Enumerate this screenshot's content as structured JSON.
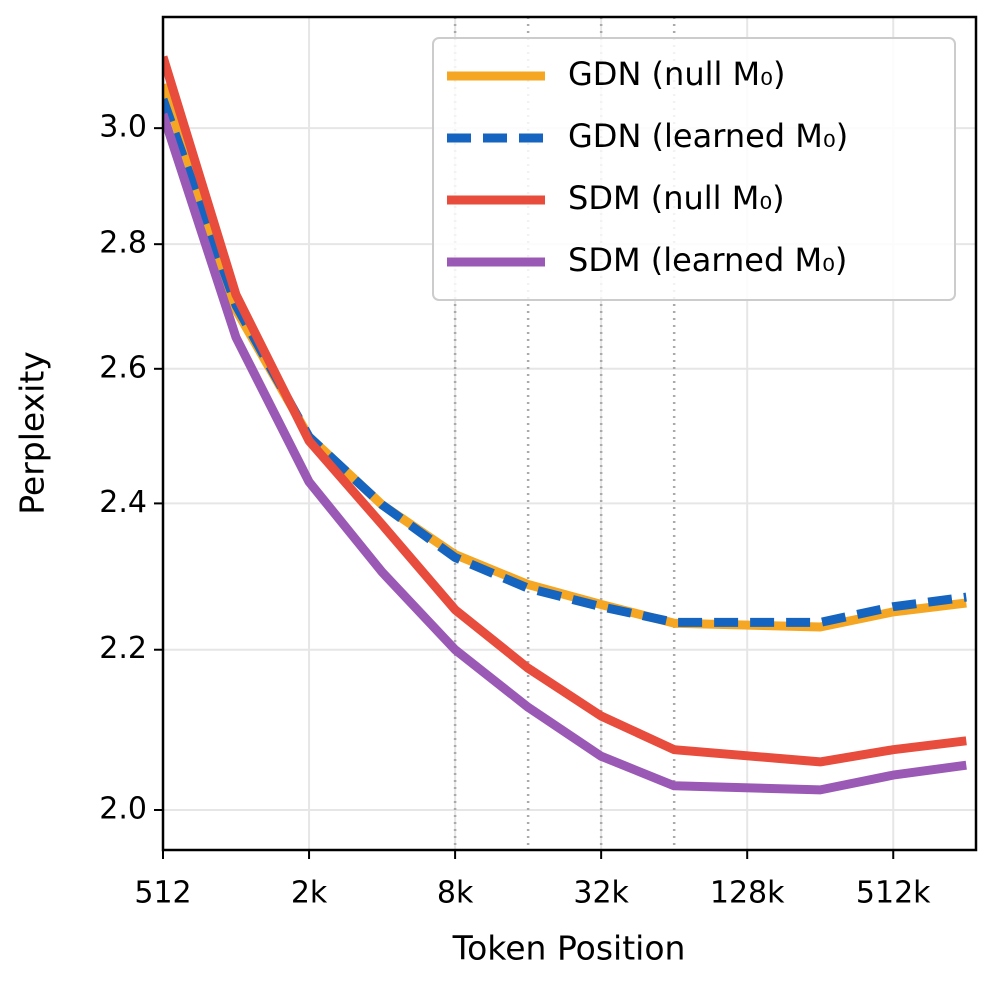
{
  "chart_data": {
    "type": "line",
    "xlabel": "Token Position",
    "ylabel": "Perplexity",
    "x": [
      512,
      1024,
      2048,
      4096,
      8192,
      16384,
      32768,
      65536,
      262144,
      524288,
      1048576
    ],
    "xscale": "log",
    "yscale": "log",
    "xlim": [
      512,
      1150000
    ],
    "ylim": [
      1.953,
      3.205
    ],
    "xticks": [
      512,
      {
        "value": 2048,
        "label": "2k"
      },
      {
        "value": 8192,
        "label": "8k"
      },
      {
        "value": 32768,
        "label": "32k"
      },
      {
        "value": 131072,
        "label": "128k"
      },
      {
        "value": 524288,
        "label": "512k"
      }
    ],
    "yticks": [
      {
        "value": 2.0,
        "label": "2.0"
      },
      2.2,
      2.4,
      2.6,
      2.8,
      {
        "value": 3.0,
        "label": "3.0"
      }
    ],
    "grid": true,
    "vlines": [
      8192,
      16384,
      32768,
      65536
    ],
    "legend": "upper right",
    "series": [
      {
        "name": "GDN (null M₀)",
        "color": "#f5a623",
        "linestyle": "solid",
        "values": [
          3.079,
          2.693,
          2.497,
          2.398,
          2.328,
          2.287,
          2.26,
          2.235,
          2.23,
          2.25,
          2.262
        ]
      },
      {
        "name": "GDN (learned M₀)",
        "color": "#1565c0",
        "linestyle": "dashed",
        "values": [
          3.052,
          2.7,
          2.497,
          2.398,
          2.324,
          2.282,
          2.257,
          2.236,
          2.236,
          2.257,
          2.27
        ]
      },
      {
        "name": "SDM (null M₀)",
        "color": "#e74c3c",
        "linestyle": "solid",
        "values": [
          3.13,
          2.717,
          2.491,
          2.37,
          2.253,
          2.176,
          2.115,
          2.073,
          2.058,
          2.073,
          2.084
        ]
      },
      {
        "name": "SDM (learned M₀)",
        "color": "#9b59b6",
        "linestyle": "solid",
        "values": [
          3.025,
          2.649,
          2.431,
          2.304,
          2.2,
          2.126,
          2.065,
          2.029,
          2.024,
          2.042,
          2.054
        ]
      }
    ]
  }
}
